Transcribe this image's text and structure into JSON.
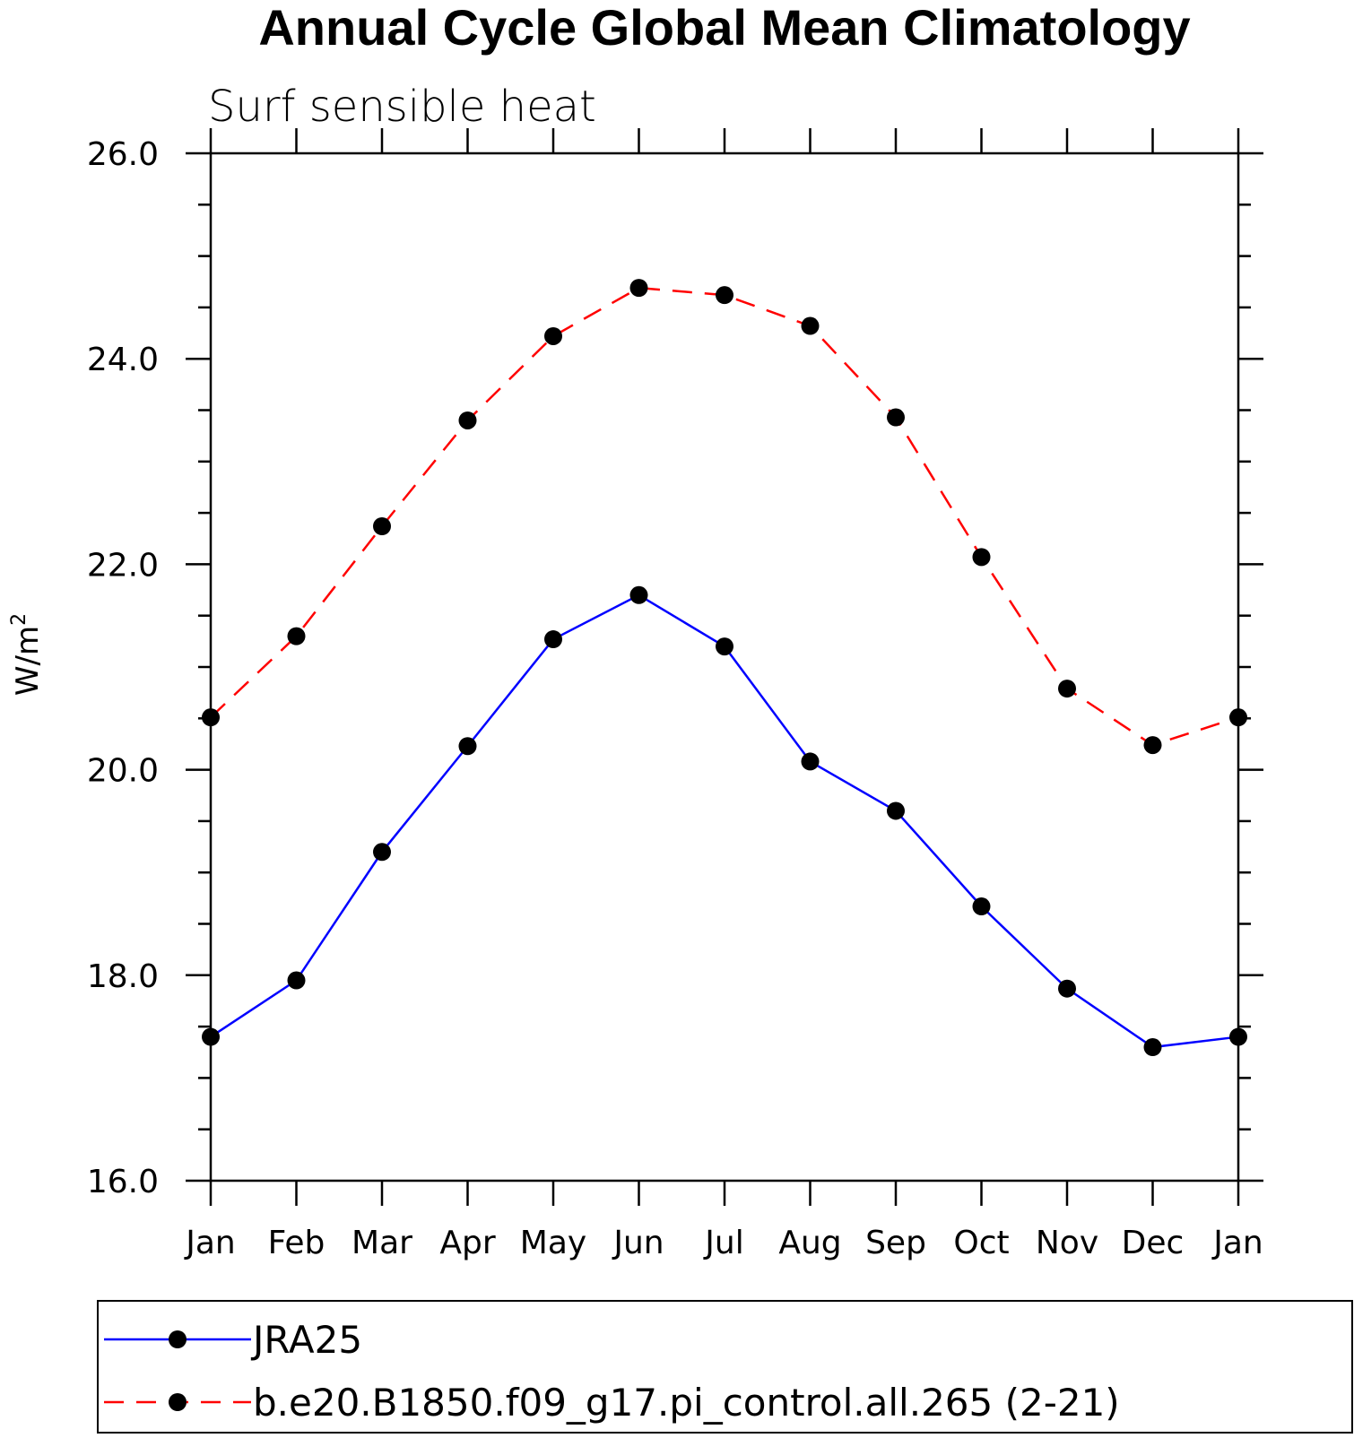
{
  "chart_data": {
    "type": "line",
    "title": "Annual Cycle Global Mean Climatology",
    "subtitle": "Surf sensible heat",
    "ylabel": "W/m",
    "ylabel_superscript": "2",
    "xlabel": "",
    "categories": [
      "Jan",
      "Feb",
      "Mar",
      "Apr",
      "May",
      "Jun",
      "Jul",
      "Aug",
      "Sep",
      "Oct",
      "Nov",
      "Dec",
      "Jan"
    ],
    "ylim": [
      16.0,
      26.0
    ],
    "yticks": [
      "16.0",
      "18.0",
      "20.0",
      "22.0",
      "24.0",
      "26.0"
    ],
    "ytick_values": [
      16,
      18,
      20,
      22,
      24,
      26
    ],
    "series": [
      {
        "name": "JRA25",
        "color": "#0000ff",
        "dash": "solid",
        "marker": "circle",
        "values": [
          17.4,
          17.95,
          19.2,
          20.23,
          21.27,
          21.7,
          21.2,
          20.08,
          19.6,
          18.67,
          17.87,
          17.3,
          17.4
        ]
      },
      {
        "name": "b.e20.B1850.f09_g17.pi_control.all.265 (2-21)",
        "color": "#ff0000",
        "dash": "dashed",
        "marker": "circle",
        "values": [
          20.51,
          21.3,
          22.37,
          23.4,
          24.22,
          24.69,
          24.62,
          24.32,
          23.43,
          22.07,
          20.79,
          20.24,
          20.51
        ]
      }
    ],
    "legend_position": "bottom",
    "grid": false
  }
}
